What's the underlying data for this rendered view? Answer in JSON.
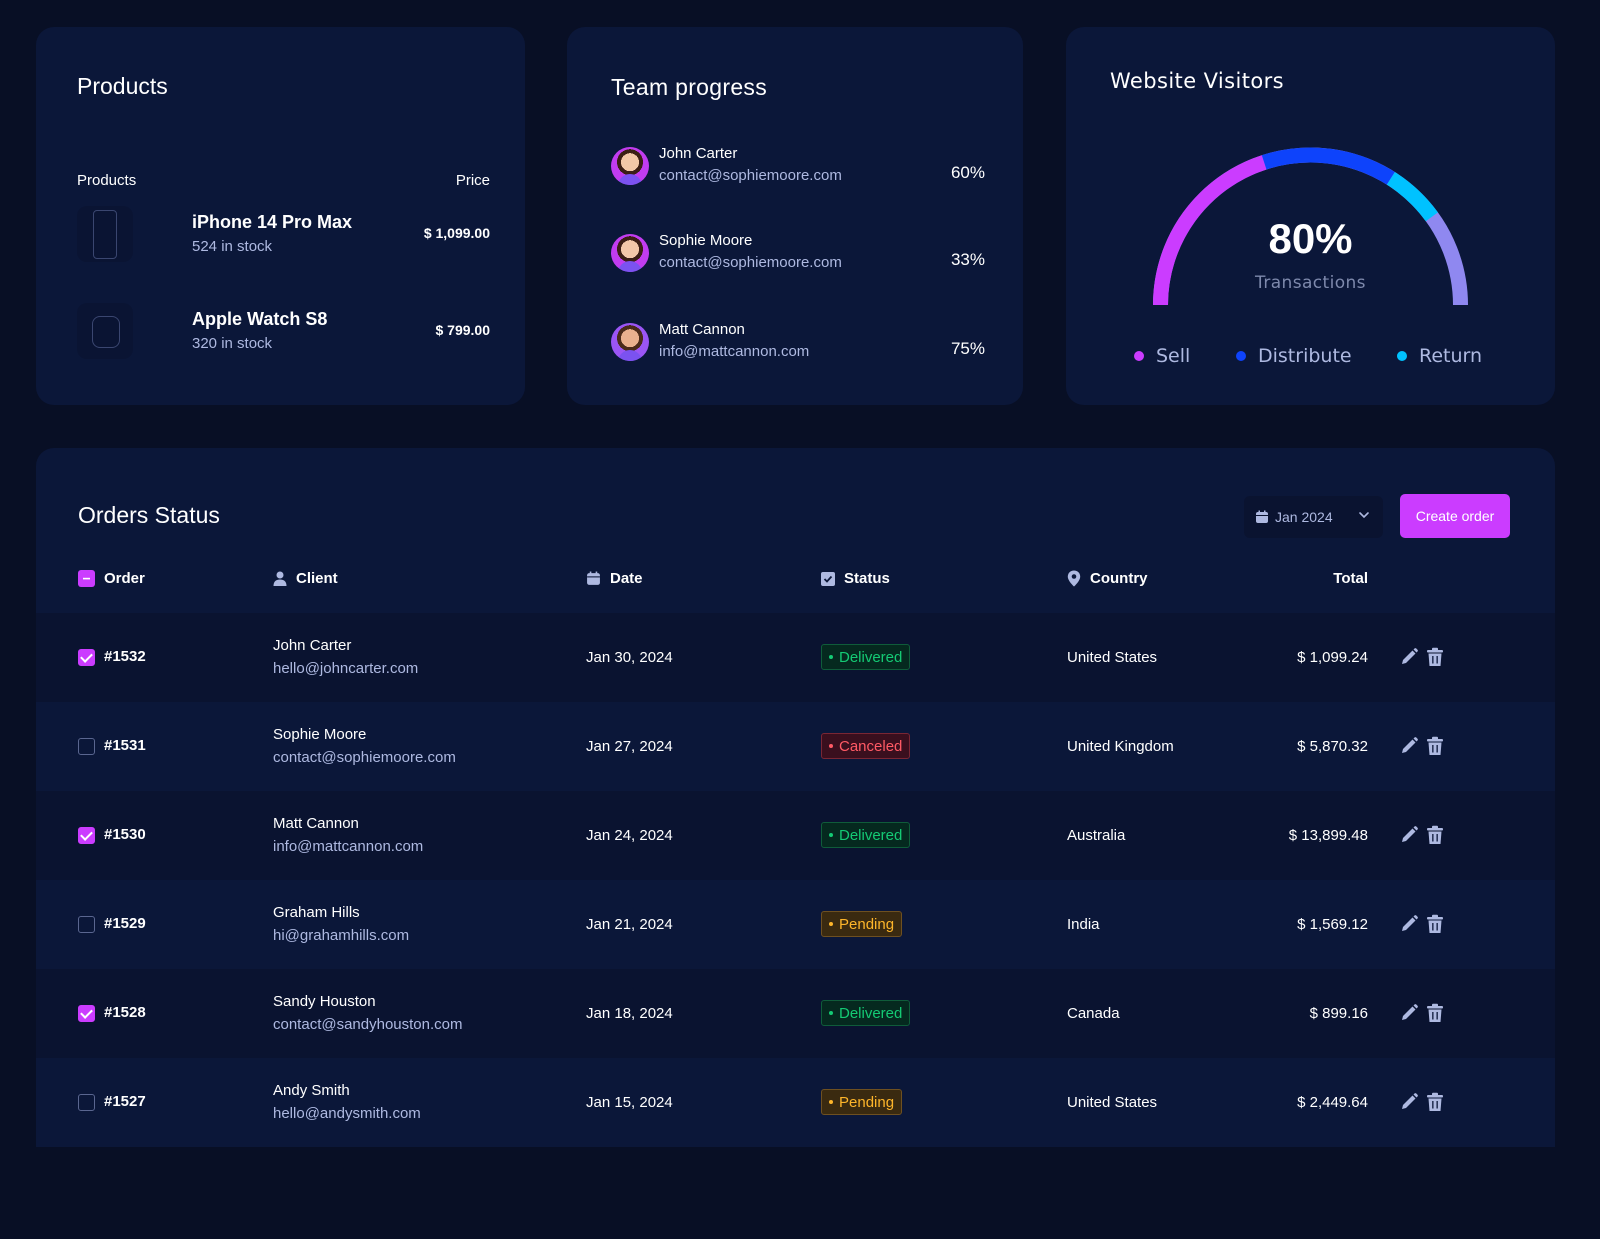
{
  "products": {
    "title": "Products",
    "col_products": "Products",
    "col_price": "Price",
    "items": [
      {
        "name": "iPhone 14 Pro Max",
        "stock": "524 in stock",
        "price": "$ 1,099.00",
        "icon": "phone-icon"
      },
      {
        "name": "Apple Watch S8",
        "stock": "320 in stock",
        "price": "$ 799.00",
        "icon": "watch-icon"
      }
    ]
  },
  "team": {
    "title": "Team progress",
    "members": [
      {
        "name": "John Carter",
        "email": "contact@sophiemoore.com",
        "percent": "60%"
      },
      {
        "name": "Sophie Moore",
        "email": "contact@sophiemoore.com",
        "percent": "33%"
      },
      {
        "name": "Matt Cannon",
        "email": "info@mattcannon.com",
        "percent": "75%"
      }
    ]
  },
  "visitors": {
    "title": "Website Visitors",
    "value": "80%",
    "label": "Transactions",
    "gauge_percent": 80,
    "segments": [
      {
        "name": "Sell",
        "share": 40,
        "color": "#cb3cff"
      },
      {
        "name": "Distribute",
        "share": 28,
        "color": "#0e43fb"
      },
      {
        "name": "Return",
        "share": 12,
        "color": "#00c2ff"
      }
    ],
    "track_color": "#8f88f0",
    "legend": [
      {
        "label": "Sell",
        "color": "#cb3cff"
      },
      {
        "label": "Distribute",
        "color": "#0e43fb"
      },
      {
        "label": "Return",
        "color": "#00c2ff"
      }
    ]
  },
  "orders": {
    "title": "Orders Status",
    "date_filter": "Jan 2024",
    "create_label": "Create order",
    "columns": {
      "order": "Order",
      "client": "Client",
      "date": "Date",
      "status": "Status",
      "country": "Country",
      "total": "Total"
    },
    "rows": [
      {
        "id": "#1532",
        "checked": true,
        "client": "John Carter",
        "email": "hello@johncarter.com",
        "date": "Jan 30, 2024",
        "status": "Delivered",
        "country": "United States",
        "total": "$ 1,099.24"
      },
      {
        "id": "#1531",
        "checked": false,
        "client": "Sophie Moore",
        "email": "contact@sophiemoore.com",
        "date": "Jan 27, 2024",
        "status": "Canceled",
        "country": "United Kingdom",
        "total": "$ 5,870.32"
      },
      {
        "id": "#1530",
        "checked": true,
        "client": "Matt Cannon",
        "email": "info@mattcannon.com",
        "date": "Jan 24, 2024",
        "status": "Delivered",
        "country": "Australia",
        "total": "$ 13,899.48"
      },
      {
        "id": "#1529",
        "checked": false,
        "client": "Graham Hills",
        "email": "hi@grahamhills.com",
        "date": "Jan 21, 2024",
        "status": "Pending",
        "country": "India",
        "total": "$ 1,569.12"
      },
      {
        "id": "#1528",
        "checked": true,
        "client": "Sandy Houston",
        "email": "contact@sandyhouston.com",
        "date": "Jan 18, 2024",
        "status": "Delivered",
        "country": "Canada",
        "total": "$ 899.16"
      },
      {
        "id": "#1527",
        "checked": false,
        "client": "Andy Smith",
        "email": "hello@andysmith.com",
        "date": "Jan 15, 2024",
        "status": "Pending",
        "country": "United States",
        "total": "$ 2,449.64"
      }
    ],
    "status_colors": {
      "Delivered": {
        "text": "#14ca74",
        "bg": "#05291f",
        "border": "#0f5c3a"
      },
      "Canceled": {
        "text": "#ff5a65",
        "bg": "#3a0f1e",
        "border": "#7a2634"
      },
      "Pending": {
        "text": "#fdb52a",
        "bg": "#3a2a10",
        "border": "#6e5020"
      }
    }
  }
}
